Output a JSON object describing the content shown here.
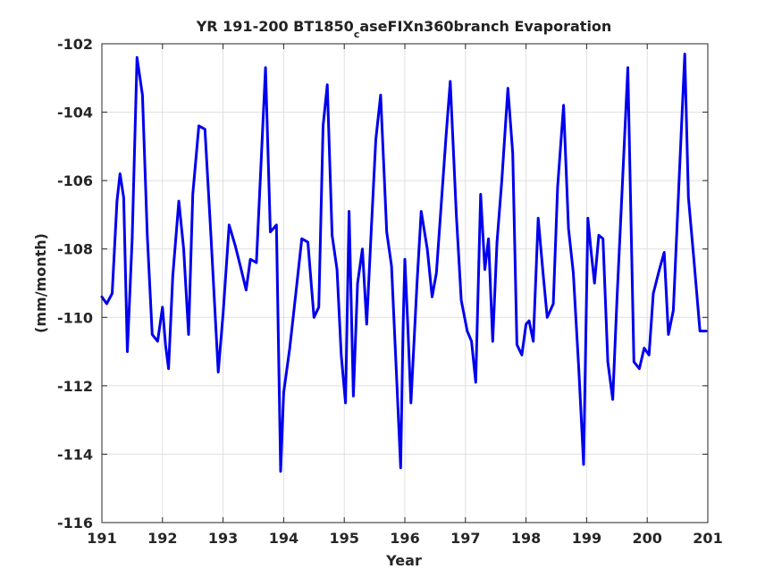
{
  "chart_data": {
    "type": "line",
    "title": "YR 191-200 BT1850",
    "title_subscript": "c",
    "title_rest": "aseFIXn360branch Evaporation",
    "xlabel": "Year",
    "ylabel": "(mm/month)",
    "xlim": [
      191,
      201
    ],
    "ylim": [
      -116,
      -102
    ],
    "xticks": [
      191,
      192,
      193,
      194,
      195,
      196,
      197,
      198,
      199,
      200,
      201
    ],
    "yticks": [
      -116,
      -114,
      -112,
      -110,
      -108,
      -106,
      -104,
      -102
    ],
    "grid": true,
    "series": [
      {
        "color": "#0000ee",
        "x": [
          191.0,
          191.08,
          191.17,
          191.25,
          191.3,
          191.36,
          191.42,
          191.5,
          191.58,
          191.67,
          191.75,
          191.83,
          191.92,
          192.0,
          192.05,
          192.1,
          192.17,
          192.27,
          192.35,
          192.43,
          192.5,
          192.6,
          192.7,
          192.8,
          192.92,
          193.0,
          193.1,
          193.2,
          193.3,
          193.38,
          193.45,
          193.55,
          193.7,
          193.78,
          193.88,
          193.95,
          194.0,
          194.1,
          194.2,
          194.3,
          194.4,
          194.5,
          194.58,
          194.65,
          194.72,
          194.8,
          194.88,
          194.95,
          195.02,
          195.08,
          195.15,
          195.22,
          195.3,
          195.37,
          195.45,
          195.52,
          195.6,
          195.7,
          195.78,
          195.87,
          195.93,
          195.97,
          196.0,
          196.05,
          196.1,
          196.2,
          196.27,
          196.37,
          196.45,
          196.52,
          196.68,
          196.75,
          196.85,
          196.93,
          197.03,
          197.1,
          197.17,
          197.25,
          197.32,
          197.38,
          197.45,
          197.52,
          197.6,
          197.7,
          197.78,
          197.85,
          197.93,
          198.0,
          198.05,
          198.12,
          198.2,
          198.28,
          198.35,
          198.45,
          198.52,
          198.62,
          198.7,
          198.78,
          198.87,
          198.95,
          199.02,
          199.07,
          199.13,
          199.2,
          199.27,
          199.35,
          199.43,
          199.5,
          199.58,
          199.68,
          199.78,
          199.87,
          199.95,
          200.03,
          200.1,
          200.2,
          200.28,
          200.35,
          200.43,
          200.52,
          200.62,
          200.68,
          200.77,
          200.87,
          200.97
        ],
        "y": [
          -109.4,
          -109.6,
          -109.3,
          -106.6,
          -105.8,
          -106.5,
          -111.0,
          -107.7,
          -102.4,
          -103.5,
          -107.6,
          -110.5,
          -110.7,
          -109.7,
          -110.8,
          -111.5,
          -108.8,
          -106.6,
          -108.0,
          -110.5,
          -106.4,
          -104.4,
          -104.5,
          -107.6,
          -111.6,
          -109.9,
          -107.3,
          -107.9,
          -108.6,
          -109.2,
          -108.3,
          -108.4,
          -102.7,
          -107.5,
          -107.3,
          -114.5,
          -112.2,
          -110.9,
          -109.3,
          -107.7,
          -107.8,
          -110.0,
          -109.7,
          -104.4,
          -103.2,
          -107.6,
          -108.6,
          -111.1,
          -112.5,
          -106.9,
          -112.3,
          -109.0,
          -108.0,
          -110.2,
          -107.3,
          -104.8,
          -103.5,
          -107.5,
          -108.5,
          -112.0,
          -114.4,
          -110.3,
          -108.3,
          -110.3,
          -112.5,
          -109.0,
          -106.9,
          -108.0,
          -109.4,
          -108.7,
          -104.7,
          -103.1,
          -107.0,
          -109.5,
          -110.4,
          -110.7,
          -111.9,
          -106.4,
          -108.6,
          -107.7,
          -110.7,
          -107.8,
          -106.0,
          -103.3,
          -105.2,
          -110.8,
          -111.1,
          -110.2,
          -110.1,
          -110.7,
          -107.1,
          -108.7,
          -110.0,
          -109.6,
          -106.2,
          -103.8,
          -107.4,
          -108.7,
          -111.5,
          -114.3,
          -107.1,
          -108.0,
          -109.0,
          -107.6,
          -107.7,
          -111.3,
          -112.4,
          -109.5,
          -106.5,
          -102.7,
          -111.3,
          -111.5,
          -110.9,
          -111.1,
          -109.3,
          -108.6,
          -108.1,
          -110.5,
          -109.8,
          -106.2,
          -102.3,
          -106.5,
          -108.3,
          -110.4,
          -110.4
        ]
      }
    ]
  }
}
